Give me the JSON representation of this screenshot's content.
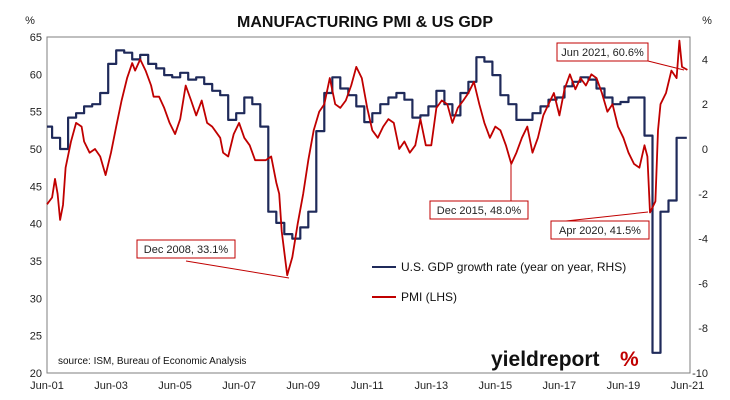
{
  "chart_data": {
    "type": "line",
    "title": "MANUFACTURING PMI & US GDP",
    "left_axis": {
      "unit": "%",
      "ylim": [
        20,
        65
      ],
      "ticks": [
        20,
        25,
        30,
        35,
        40,
        45,
        50,
        55,
        60,
        65
      ]
    },
    "right_axis": {
      "unit": "%",
      "ylim": [
        -10,
        5
      ],
      "ticks": [
        -10,
        -8,
        -6,
        -4,
        -2,
        0,
        2,
        4
      ]
    },
    "x_range": [
      2001.42,
      2021.5
    ],
    "x_ticks": [
      {
        "label": "Jun-01",
        "x": 2001.42
      },
      {
        "label": "Jun-03",
        "x": 2003.42
      },
      {
        "label": "Jun-05",
        "x": 2005.42
      },
      {
        "label": "Jun-07",
        "x": 2007.42
      },
      {
        "label": "Jun-09",
        "x": 2009.42
      },
      {
        "label": "Jun-11",
        "x": 2011.42
      },
      {
        "label": "Jun-13",
        "x": 2013.42
      },
      {
        "label": "Jun-15",
        "x": 2015.42
      },
      {
        "label": "Jun-17",
        "x": 2017.42
      },
      {
        "label": "Jun-19",
        "x": 2019.42
      },
      {
        "label": "Jun-21",
        "x": 2021.42
      }
    ],
    "grid": false,
    "legend_position": "lower-right",
    "series": [
      {
        "name": "U.S. GDP growth rate (year on year, RHS)",
        "axis": "right",
        "color": "#1f2a5a",
        "step": true,
        "points": [
          [
            2001.42,
            1.0
          ],
          [
            2001.58,
            0.5
          ],
          [
            2001.83,
            0.0
          ],
          [
            2002.08,
            1.4
          ],
          [
            2002.33,
            1.6
          ],
          [
            2002.58,
            1.9
          ],
          [
            2002.83,
            2.0
          ],
          [
            2003.08,
            2.5
          ],
          [
            2003.33,
            3.8
          ],
          [
            2003.58,
            4.4
          ],
          [
            2003.83,
            4.3
          ],
          [
            2004.08,
            4.0
          ],
          [
            2004.33,
            4.2
          ],
          [
            2004.58,
            3.8
          ],
          [
            2004.83,
            3.6
          ],
          [
            2005.08,
            3.3
          ],
          [
            2005.33,
            3.2
          ],
          [
            2005.58,
            3.4
          ],
          [
            2005.83,
            3.1
          ],
          [
            2006.08,
            3.2
          ],
          [
            2006.33,
            2.9
          ],
          [
            2006.58,
            2.6
          ],
          [
            2006.83,
            2.4
          ],
          [
            2007.08,
            1.3
          ],
          [
            2007.33,
            1.6
          ],
          [
            2007.58,
            2.3
          ],
          [
            2007.83,
            2.0
          ],
          [
            2008.08,
            1.0
          ],
          [
            2008.33,
            -2.8
          ],
          [
            2008.58,
            -3.3
          ],
          [
            2008.83,
            -3.8
          ],
          [
            2009.08,
            -4.0
          ],
          [
            2009.33,
            -3.5
          ],
          [
            2009.58,
            -2.8
          ],
          [
            2009.83,
            0.8
          ],
          [
            2010.08,
            2.5
          ],
          [
            2010.33,
            3.2
          ],
          [
            2010.58,
            2.7
          ],
          [
            2010.83,
            2.4
          ],
          [
            2011.08,
            1.9
          ],
          [
            2011.33,
            1.2
          ],
          [
            2011.58,
            1.6
          ],
          [
            2011.83,
            2.0
          ],
          [
            2012.08,
            2.3
          ],
          [
            2012.33,
            2.5
          ],
          [
            2012.58,
            2.2
          ],
          [
            2012.83,
            1.4
          ],
          [
            2013.08,
            1.5
          ],
          [
            2013.33,
            1.9
          ],
          [
            2013.58,
            2.6
          ],
          [
            2013.83,
            2.0
          ],
          [
            2014.08,
            1.5
          ],
          [
            2014.33,
            2.5
          ],
          [
            2014.58,
            3.0
          ],
          [
            2014.83,
            4.1
          ],
          [
            2015.08,
            3.9
          ],
          [
            2015.33,
            3.3
          ],
          [
            2015.58,
            2.4
          ],
          [
            2015.83,
            2.0
          ],
          [
            2016.08,
            1.3
          ],
          [
            2016.33,
            1.3
          ],
          [
            2016.58,
            1.6
          ],
          [
            2016.83,
            1.9
          ],
          [
            2017.08,
            2.2
          ],
          [
            2017.33,
            2.3
          ],
          [
            2017.58,
            2.8
          ],
          [
            2017.83,
            3.0
          ],
          [
            2018.08,
            3.2
          ],
          [
            2018.33,
            3.1
          ],
          [
            2018.58,
            2.7
          ],
          [
            2018.83,
            2.3
          ],
          [
            2019.08,
            2.0
          ],
          [
            2019.33,
            2.1
          ],
          [
            2019.58,
            2.3
          ],
          [
            2019.83,
            2.3
          ],
          [
            2020.08,
            0.6
          ],
          [
            2020.33,
            -9.1
          ],
          [
            2020.58,
            -2.8
          ],
          [
            2020.83,
            -2.3
          ],
          [
            2021.08,
            0.5
          ],
          [
            2021.33,
            0.5
          ]
        ]
      },
      {
        "name": "PMI (LHS)",
        "axis": "left",
        "color": "#c00000",
        "step": false,
        "points": [
          [
            2001.42,
            42.6
          ],
          [
            2001.58,
            43.5
          ],
          [
            2001.67,
            46.0
          ],
          [
            2001.75,
            44.0
          ],
          [
            2001.83,
            40.5
          ],
          [
            2001.92,
            42.5
          ],
          [
            2002.0,
            47.5
          ],
          [
            2002.17,
            51.0
          ],
          [
            2002.33,
            53.5
          ],
          [
            2002.5,
            53.0
          ],
          [
            2002.58,
            51.0
          ],
          [
            2002.75,
            49.5
          ],
          [
            2002.92,
            50.0
          ],
          [
            2003.08,
            49.0
          ],
          [
            2003.25,
            46.5
          ],
          [
            2003.42,
            49.5
          ],
          [
            2003.58,
            53.0
          ],
          [
            2003.75,
            56.5
          ],
          [
            2003.92,
            59.5
          ],
          [
            2004.08,
            61.5
          ],
          [
            2004.17,
            60.5
          ],
          [
            2004.33,
            62.0
          ],
          [
            2004.5,
            60.5
          ],
          [
            2004.67,
            58.5
          ],
          [
            2004.75,
            57.0
          ],
          [
            2004.92,
            57.0
          ],
          [
            2005.08,
            55.5
          ],
          [
            2005.25,
            53.5
          ],
          [
            2005.42,
            52.0
          ],
          [
            2005.58,
            54.0
          ],
          [
            2005.75,
            58.5
          ],
          [
            2005.92,
            56.5
          ],
          [
            2006.08,
            54.5
          ],
          [
            2006.25,
            56.5
          ],
          [
            2006.42,
            53.5
          ],
          [
            2006.58,
            53.0
          ],
          [
            2006.83,
            51.5
          ],
          [
            2006.92,
            49.5
          ],
          [
            2007.08,
            49.0
          ],
          [
            2007.25,
            52.0
          ],
          [
            2007.42,
            53.5
          ],
          [
            2007.58,
            51.5
          ],
          [
            2007.75,
            50.5
          ],
          [
            2007.92,
            48.5
          ],
          [
            2008.08,
            48.5
          ],
          [
            2008.25,
            48.5
          ],
          [
            2008.42,
            49.0
          ],
          [
            2008.58,
            45.5
          ],
          [
            2008.67,
            44.0
          ],
          [
            2008.75,
            39.0
          ],
          [
            2008.92,
            33.1
          ],
          [
            2009.08,
            35.5
          ],
          [
            2009.25,
            40.0
          ],
          [
            2009.42,
            44.0
          ],
          [
            2009.58,
            48.5
          ],
          [
            2009.75,
            52.5
          ],
          [
            2009.92,
            55.0
          ],
          [
            2010.08,
            56.0
          ],
          [
            2010.25,
            59.5
          ],
          [
            2010.42,
            56.0
          ],
          [
            2010.58,
            55.5
          ],
          [
            2010.75,
            56.5
          ],
          [
            2010.92,
            58.5
          ],
          [
            2011.08,
            61.0
          ],
          [
            2011.25,
            59.5
          ],
          [
            2011.42,
            55.5
          ],
          [
            2011.58,
            52.5
          ],
          [
            2011.75,
            51.5
          ],
          [
            2011.92,
            53.0
          ],
          [
            2012.08,
            54.0
          ],
          [
            2012.25,
            53.5
          ],
          [
            2012.42,
            50.0
          ],
          [
            2012.58,
            51.0
          ],
          [
            2012.75,
            49.5
          ],
          [
            2012.92,
            50.5
          ],
          [
            2013.08,
            54.0
          ],
          [
            2013.25,
            50.5
          ],
          [
            2013.42,
            50.5
          ],
          [
            2013.58,
            55.5
          ],
          [
            2013.75,
            56.5
          ],
          [
            2013.92,
            56.0
          ],
          [
            2014.08,
            53.5
          ],
          [
            2014.25,
            55.5
          ],
          [
            2014.42,
            56.5
          ],
          [
            2014.58,
            57.5
          ],
          [
            2014.75,
            59.0
          ],
          [
            2014.92,
            56.0
          ],
          [
            2015.08,
            53.5
          ],
          [
            2015.25,
            51.5
          ],
          [
            2015.42,
            53.0
          ],
          [
            2015.58,
            52.5
          ],
          [
            2015.75,
            50.5
          ],
          [
            2015.92,
            48.0
          ],
          [
            2016.08,
            49.5
          ],
          [
            2016.25,
            51.5
          ],
          [
            2016.42,
            53.0
          ],
          [
            2016.58,
            49.5
          ],
          [
            2016.75,
            51.5
          ],
          [
            2016.92,
            54.5
          ],
          [
            2017.08,
            56.0
          ],
          [
            2017.25,
            57.5
          ],
          [
            2017.42,
            54.5
          ],
          [
            2017.58,
            58.0
          ],
          [
            2017.75,
            60.0
          ],
          [
            2017.92,
            58.0
          ],
          [
            2018.08,
            59.5
          ],
          [
            2018.25,
            58.5
          ],
          [
            2018.42,
            60.0
          ],
          [
            2018.58,
            59.5
          ],
          [
            2018.75,
            57.5
          ],
          [
            2018.92,
            55.0
          ],
          [
            2019.08,
            56.0
          ],
          [
            2019.25,
            53.0
          ],
          [
            2019.42,
            51.5
          ],
          [
            2019.58,
            49.5
          ],
          [
            2019.75,
            48.0
          ],
          [
            2019.92,
            47.5
          ],
          [
            2020.08,
            50.5
          ],
          [
            2020.17,
            49.0
          ],
          [
            2020.25,
            41.5
          ],
          [
            2020.42,
            43.0
          ],
          [
            2020.5,
            52.5
          ],
          [
            2020.58,
            56.0
          ],
          [
            2020.75,
            57.5
          ],
          [
            2020.92,
            60.5
          ],
          [
            2021.08,
            59.5
          ],
          [
            2021.17,
            64.5
          ],
          [
            2021.25,
            61.0
          ],
          [
            2021.42,
            60.6
          ]
        ]
      }
    ],
    "annotations": [
      {
        "label": "Dec 2008, 33.1%",
        "x": 2008.92,
        "y": 33.1
      },
      {
        "label": "Dec 2015, 48.0%",
        "x": 2015.92,
        "y": 48.0
      },
      {
        "label": "Apr 2020, 41.5%",
        "x": 2020.25,
        "y": 41.5
      },
      {
        "label": "Jun 2021, 60.6%",
        "x": 2021.42,
        "y": 60.6
      }
    ],
    "source": "source: ISM, Bureau of Economic Analysis",
    "colors": {
      "axis": "#7f7f7f",
      "annotation_border": "#c00000"
    }
  },
  "branding": {
    "logo_text": "yieldreport",
    "logo_mark": "%"
  }
}
